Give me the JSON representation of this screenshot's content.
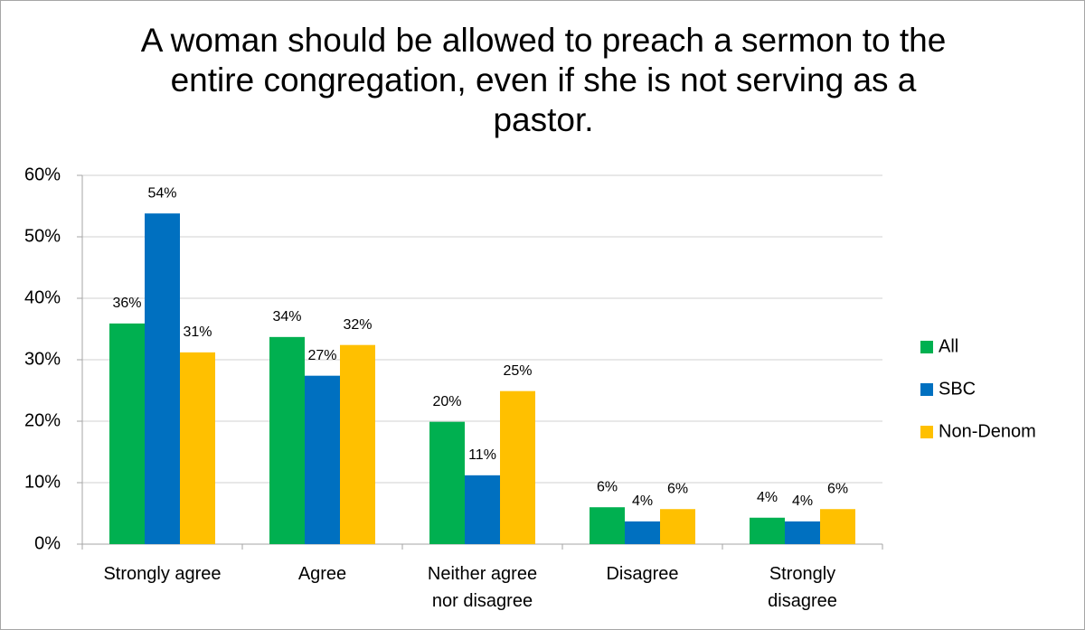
{
  "chart_data": {
    "type": "bar",
    "title": "A woman should be allowed to preach a sermon to the entire congregation, even if she is not serving as a pastor.",
    "categories": [
      "Strongly agree",
      "Agree",
      "Neither agree nor disagree",
      "Disagree",
      "Strongly disagree"
    ],
    "series": [
      {
        "name": "All",
        "color": "#00b050",
        "values": [
          35.9,
          33.7,
          19.9,
          6.0,
          4.3
        ],
        "value_labels": [
          "36%",
          "34%",
          "20%",
          "6%",
          "4%"
        ]
      },
      {
        "name": "SBC",
        "color": "#0070c0",
        "values": [
          53.8,
          27.4,
          11.2,
          3.7,
          3.7
        ],
        "value_labels": [
          "54%",
          "27%",
          "11%",
          "4%",
          "4%"
        ]
      },
      {
        "name": "Non-Denom",
        "color": "#ffc000",
        "values": [
          31.2,
          32.4,
          24.9,
          5.7,
          5.7
        ],
        "value_labels": [
          "31%",
          "32%",
          "25%",
          "6%",
          "6%"
        ]
      }
    ],
    "ylim": [
      0,
      60
    ],
    "yticks": [
      {
        "value": 0,
        "label": "0%"
      },
      {
        "value": 10,
        "label": "10%"
      },
      {
        "value": 20,
        "label": "20%"
      },
      {
        "value": 30,
        "label": "30%"
      },
      {
        "value": 40,
        "label": "40%"
      },
      {
        "value": 50,
        "label": "50%"
      },
      {
        "value": 60,
        "label": "60%"
      }
    ],
    "grid": true,
    "legend": "right"
  }
}
